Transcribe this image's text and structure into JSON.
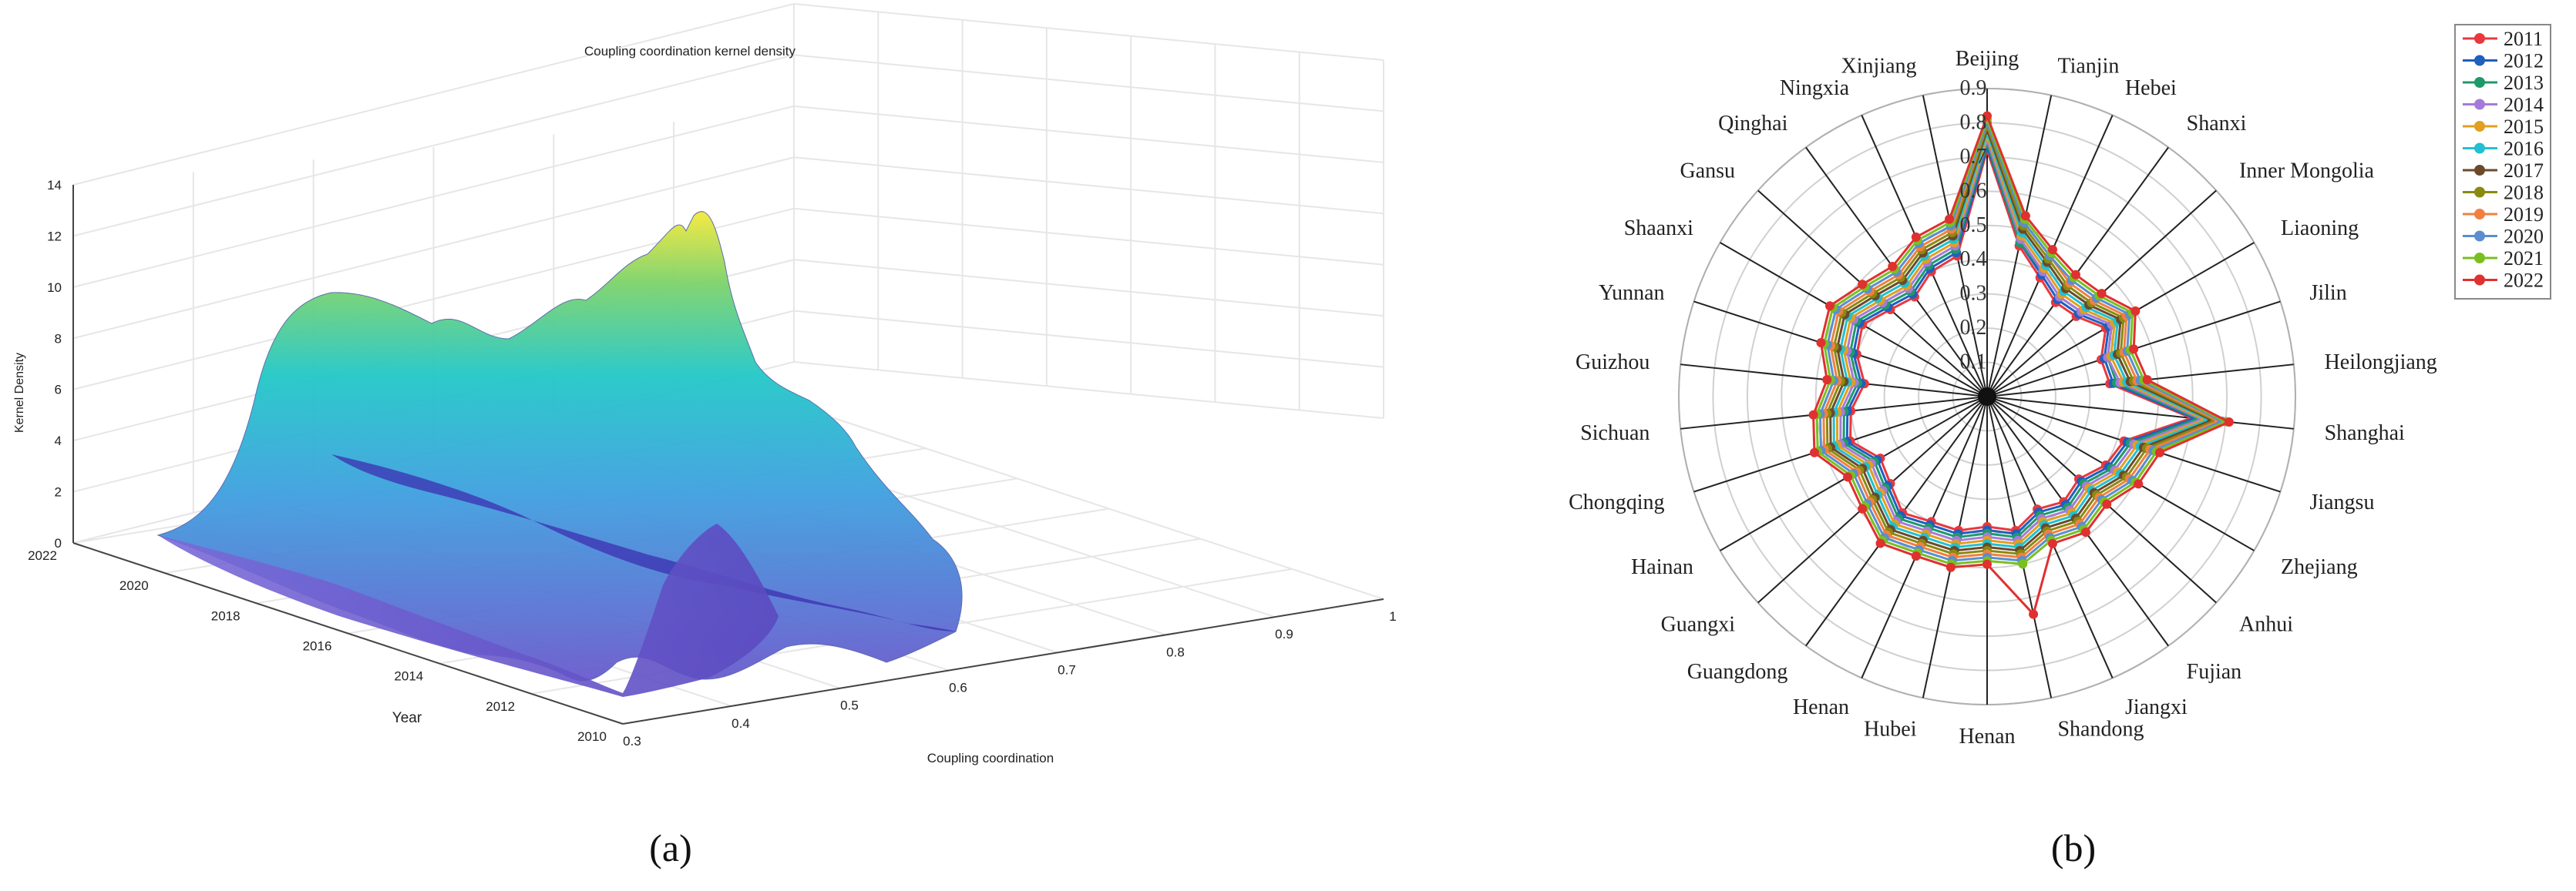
{
  "panel_a": {
    "title": "Coupling coordination kernel density",
    "zlabel": "Kernel Density",
    "ylabel": "Year",
    "xlabel": "Coupling coordination",
    "caption": "(a)",
    "z_ticks": [
      "0",
      "2",
      "4",
      "6",
      "8",
      "10",
      "12",
      "14"
    ],
    "year_ticks": [
      "2022",
      "2020",
      "2018",
      "2016",
      "2014",
      "2012",
      "2010"
    ],
    "x_ticks": [
      "0.3",
      "0.4",
      "0.5",
      "0.6",
      "0.7",
      "0.8",
      "0.9",
      "1"
    ],
    "colors": {
      "low": "#6a5acd",
      "mid": "#22c8d8",
      "high": "#f5e93a"
    }
  },
  "panel_b": {
    "caption": "(b)",
    "radial_ticks": [
      "0.9",
      "0.8",
      "0.7",
      "0.6",
      "0.5",
      "0.4",
      "0.3",
      "0.2",
      "0.1"
    ],
    "legend": [
      {
        "label": "2011",
        "color": "#e8383d",
        "marker": "square"
      },
      {
        "label": "2012",
        "color": "#1f5fbf",
        "marker": "circle"
      },
      {
        "label": "2013",
        "color": "#1e9a6a",
        "marker": "triangle-up"
      },
      {
        "label": "2014",
        "color": "#a57bd8",
        "marker": "triangle-down"
      },
      {
        "label": "2015",
        "color": "#e0a020",
        "marker": "diamond"
      },
      {
        "label": "2016",
        "color": "#22c0d0",
        "marker": "triangle-left"
      },
      {
        "label": "2017",
        "color": "#6b4a2b",
        "marker": "triangle-right"
      },
      {
        "label": "2018",
        "color": "#8a8a10",
        "marker": "hexagon"
      },
      {
        "label": "2019",
        "color": "#f08040",
        "marker": "star"
      },
      {
        "label": "2020",
        "color": "#5a8ed0",
        "marker": "pentagon"
      },
      {
        "label": "2021",
        "color": "#78c020",
        "marker": "circle-half"
      },
      {
        "label": "2022",
        "color": "#e03030",
        "marker": "cross"
      }
    ]
  },
  "chart_data": [
    {
      "type": "area",
      "title": "Coupling coordination kernel density",
      "xlabel": "Coupling coordination",
      "ylabel": "Year",
      "zlabel": "Kernel Density",
      "xlim": [
        0.3,
        1
      ],
      "ylim": [
        2010,
        2022
      ],
      "zlim": [
        0,
        14
      ],
      "x": [
        0.3,
        0.35,
        0.4,
        0.45,
        0.5,
        0.55,
        0.6,
        0.65
      ],
      "series": [
        {
          "name": "2010",
          "values": [
            0.2,
            3.5,
            7.2,
            2.0,
            4.5,
            1.5,
            0.3,
            0.1
          ]
        },
        {
          "name": "2016",
          "values": [
            0.2,
            5.0,
            7.5,
            5.2,
            7.0,
            3.0,
            0.5,
            0.1
          ]
        },
        {
          "name": "2022",
          "values": [
            0.2,
            6.5,
            7.8,
            8.5,
            11.5,
            4.2,
            0.8,
            0.1
          ]
        }
      ]
    },
    {
      "type": "radar",
      "rlim": [
        0,
        0.9
      ],
      "categories": [
        "Beijing",
        "Tianjin",
        "Hebei",
        "Shanxi",
        "Inner Mongolia",
        "Liaoning",
        "Jilin",
        "Heilongjiang",
        "Shanghai",
        "Jiangsu",
        "Zhejiang",
        "Anhui",
        "Fujian",
        "Jiangxi",
        "Shandong",
        "Henan",
        "Hubei",
        "Henan",
        "Guangdong",
        "Guangxi",
        "Hainan",
        "Chongqing",
        "Sichuan",
        "Guizhou",
        "Yunnan",
        "Shaanxi",
        "Gansu",
        "Qinghai",
        "Ningxia",
        "Xinjiang"
      ],
      "series": [
        {
          "name": "2011",
          "values": [
            0.72,
            0.45,
            0.38,
            0.34,
            0.35,
            0.4,
            0.35,
            0.36,
            0.6,
            0.42,
            0.4,
            0.36,
            0.38,
            0.36,
            0.4,
            0.38,
            0.4,
            0.4,
            0.42,
            0.38,
            0.36,
            0.42,
            0.4,
            0.36,
            0.4,
            0.42,
            0.38,
            0.36,
            0.4,
            0.42
          ]
        },
        {
          "name": "2012",
          "values": [
            0.73,
            0.46,
            0.39,
            0.35,
            0.36,
            0.41,
            0.36,
            0.37,
            0.61,
            0.43,
            0.41,
            0.37,
            0.39,
            0.37,
            0.41,
            0.39,
            0.41,
            0.41,
            0.43,
            0.39,
            0.37,
            0.43,
            0.41,
            0.37,
            0.41,
            0.43,
            0.39,
            0.37,
            0.41,
            0.43
          ]
        },
        {
          "name": "2013",
          "values": [
            0.74,
            0.46,
            0.4,
            0.36,
            0.37,
            0.42,
            0.37,
            0.38,
            0.62,
            0.44,
            0.42,
            0.38,
            0.4,
            0.38,
            0.42,
            0.4,
            0.42,
            0.42,
            0.44,
            0.4,
            0.38,
            0.44,
            0.42,
            0.38,
            0.42,
            0.44,
            0.4,
            0.38,
            0.42,
            0.44
          ]
        },
        {
          "name": "2014",
          "values": [
            0.75,
            0.47,
            0.4,
            0.36,
            0.37,
            0.42,
            0.37,
            0.39,
            0.63,
            0.45,
            0.43,
            0.39,
            0.41,
            0.39,
            0.43,
            0.41,
            0.43,
            0.43,
            0.45,
            0.41,
            0.39,
            0.45,
            0.43,
            0.39,
            0.43,
            0.45,
            0.41,
            0.39,
            0.43,
            0.45
          ]
        },
        {
          "name": "2015",
          "values": [
            0.76,
            0.48,
            0.41,
            0.37,
            0.38,
            0.43,
            0.38,
            0.4,
            0.64,
            0.46,
            0.44,
            0.4,
            0.42,
            0.4,
            0.44,
            0.42,
            0.44,
            0.44,
            0.46,
            0.42,
            0.4,
            0.46,
            0.44,
            0.4,
            0.44,
            0.46,
            0.42,
            0.4,
            0.44,
            0.46
          ]
        },
        {
          "name": "2016",
          "values": [
            0.77,
            0.49,
            0.42,
            0.38,
            0.39,
            0.44,
            0.39,
            0.41,
            0.65,
            0.47,
            0.45,
            0.41,
            0.43,
            0.41,
            0.45,
            0.43,
            0.45,
            0.45,
            0.47,
            0.43,
            0.41,
            0.47,
            0.45,
            0.41,
            0.45,
            0.47,
            0.43,
            0.41,
            0.45,
            0.47
          ]
        },
        {
          "name": "2017",
          "values": [
            0.78,
            0.5,
            0.43,
            0.39,
            0.4,
            0.45,
            0.4,
            0.42,
            0.66,
            0.48,
            0.46,
            0.42,
            0.44,
            0.42,
            0.46,
            0.44,
            0.46,
            0.46,
            0.48,
            0.44,
            0.42,
            0.48,
            0.46,
            0.42,
            0.46,
            0.48,
            0.44,
            0.42,
            0.46,
            0.48
          ]
        },
        {
          "name": "2018",
          "values": [
            0.79,
            0.51,
            0.44,
            0.4,
            0.41,
            0.46,
            0.41,
            0.43,
            0.67,
            0.49,
            0.47,
            0.43,
            0.45,
            0.43,
            0.47,
            0.45,
            0.47,
            0.47,
            0.49,
            0.45,
            0.43,
            0.49,
            0.47,
            0.43,
            0.47,
            0.49,
            0.45,
            0.43,
            0.47,
            0.49
          ]
        },
        {
          "name": "2019",
          "values": [
            0.8,
            0.52,
            0.45,
            0.41,
            0.42,
            0.47,
            0.42,
            0.44,
            0.68,
            0.5,
            0.48,
            0.44,
            0.46,
            0.44,
            0.48,
            0.46,
            0.48,
            0.48,
            0.5,
            0.46,
            0.44,
            0.5,
            0.48,
            0.44,
            0.48,
            0.5,
            0.46,
            0.44,
            0.48,
            0.5
          ]
        },
        {
          "name": "2020",
          "values": [
            0.8,
            0.52,
            0.45,
            0.42,
            0.43,
            0.48,
            0.43,
            0.45,
            0.69,
            0.51,
            0.49,
            0.45,
            0.47,
            0.45,
            0.49,
            0.47,
            0.49,
            0.49,
            0.51,
            0.47,
            0.45,
            0.51,
            0.49,
            0.45,
            0.49,
            0.51,
            0.47,
            0.45,
            0.49,
            0.51
          ]
        },
        {
          "name": "2021",
          "values": [
            0.81,
            0.53,
            0.46,
            0.43,
            0.44,
            0.49,
            0.44,
            0.46,
            0.7,
            0.52,
            0.5,
            0.46,
            0.48,
            0.46,
            0.5,
            0.48,
            0.5,
            0.5,
            0.52,
            0.48,
            0.46,
            0.52,
            0.5,
            0.46,
            0.5,
            0.52,
            0.48,
            0.46,
            0.5,
            0.52
          ]
        },
        {
          "name": "2022",
          "values": [
            0.82,
            0.54,
            0.47,
            0.44,
            0.45,
            0.5,
            0.45,
            0.47,
            0.71,
            0.53,
            0.51,
            0.47,
            0.49,
            0.47,
            0.65,
            0.49,
            0.51,
            0.51,
            0.53,
            0.49,
            0.47,
            0.53,
            0.51,
            0.47,
            0.51,
            0.53,
            0.49,
            0.47,
            0.51,
            0.53
          ]
        }
      ]
    }
  ]
}
